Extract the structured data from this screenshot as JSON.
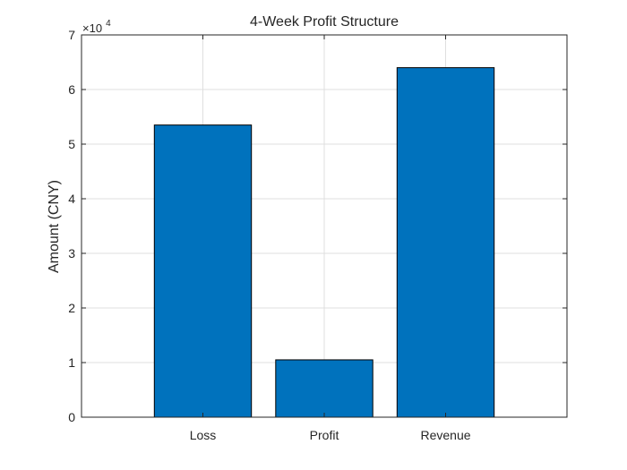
{
  "chart_data": {
    "type": "bar",
    "title": "4-Week Profit Structure",
    "xlabel": "",
    "ylabel": "Amount (CNY)",
    "categories": [
      "Loss",
      "Profit",
      "Revenue"
    ],
    "values": [
      53500,
      10500,
      64000
    ],
    "ylim": [
      0,
      70000
    ],
    "y_ticks": [
      0,
      1,
      2,
      3,
      4,
      5,
      6,
      7
    ],
    "y_tick_labels": [
      "0",
      "1",
      "2",
      "3",
      "4",
      "5",
      "6",
      "7"
    ],
    "y_exponent_base": "×10",
    "y_exponent_power": "4",
    "grid": true,
    "box": true,
    "bar_color": "#0072BD"
  }
}
